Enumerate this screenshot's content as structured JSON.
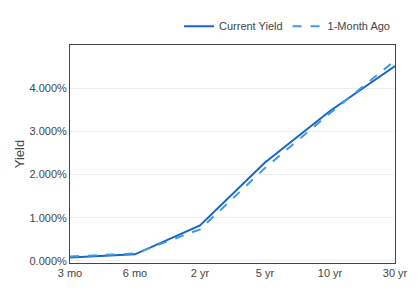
{
  "chart_data": {
    "type": "line",
    "categories": [
      "3 mo",
      "6 mo",
      "2 yr",
      "5 yr",
      "10 yr",
      "30 yr"
    ],
    "series": [
      {
        "name": "Current Yield",
        "color": "#1666cc",
        "line_style": "solid",
        "values": [
          0.08,
          0.15,
          0.82,
          2.28,
          3.47,
          4.51
        ]
      },
      {
        "name": "1-Month Ago",
        "color": "#4499dd",
        "line_style": "dashed",
        "values": [
          0.1,
          0.17,
          0.73,
          2.15,
          3.42,
          4.64
        ]
      }
    ],
    "y_label": "Yield",
    "ylim": [
      -0.05,
      5.0
    ],
    "yticks": [
      {
        "value": 0.0,
        "label": "0.000%"
      },
      {
        "value": 1.0,
        "label": "1.000%"
      },
      {
        "value": 2.0,
        "label": "2.000%"
      },
      {
        "value": 3.0,
        "label": "3.000%"
      },
      {
        "value": 4.0,
        "label": "4.000%"
      }
    ],
    "grid": true,
    "legend": "upper right"
  }
}
